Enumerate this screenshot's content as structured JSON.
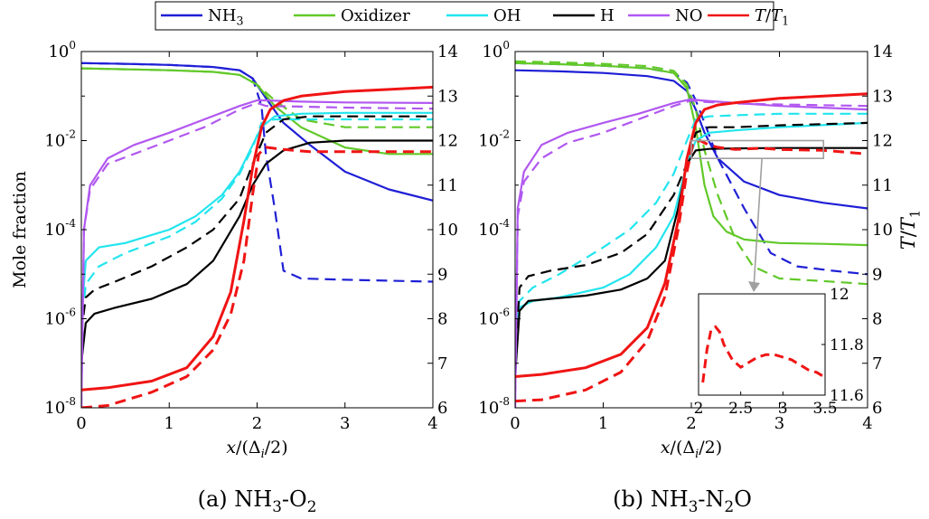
{
  "legend": [
    {
      "label": "NH3",
      "color": "#1f1fd6"
    },
    {
      "label": "Oxidizer",
      "color": "#62c929"
    },
    {
      "label": "OH",
      "color": "#22e5ee"
    },
    {
      "label": "H",
      "color": "#000000"
    },
    {
      "label": "NO",
      "color": "#b158f0"
    },
    {
      "label": "T/T1",
      "color": "#f01414"
    }
  ],
  "chart_data": [
    {
      "type": "line",
      "caption": "(a) NH3-O2",
      "xlabel": "x/(Δi/2)",
      "ylabel_left": "Mole fraction",
      "ylabel_right": "",
      "xlim": [
        0,
        4
      ],
      "ylim_left": [
        1e-08,
        1
      ],
      "yscale_left": "log",
      "ylim_right": [
        6,
        14
      ],
      "xticks": [
        0,
        1,
        2,
        3,
        4
      ],
      "yticks_left": [
        "10^-8",
        "10^-6",
        "10^-4",
        "10^-2",
        "10^0"
      ],
      "yticks_right": [
        6,
        7,
        8,
        9,
        10,
        11,
        12,
        13,
        14
      ],
      "series": [
        {
          "name": "NH3",
          "style": "solid",
          "axis": "left",
          "x": [
            0,
            0.5,
            1,
            1.5,
            1.8,
            1.95,
            2.1,
            2.3,
            2.6,
            3.0,
            3.5,
            4.0
          ],
          "y": [
            0.55,
            0.53,
            0.5,
            0.45,
            0.38,
            0.25,
            0.09,
            0.025,
            0.008,
            0.002,
            0.0008,
            0.00045
          ]
        },
        {
          "name": "NH3",
          "style": "dashed",
          "axis": "left",
          "x": [
            0,
            0.5,
            1,
            1.5,
            1.8,
            1.95,
            2.05,
            2.1,
            2.2,
            2.3,
            2.5,
            3.0,
            4.0
          ],
          "y": [
            0.55,
            0.53,
            0.5,
            0.45,
            0.38,
            0.25,
            0.06,
            0.005,
            0.0003,
            1.2e-05,
            8e-06,
            7.5e-06,
            6.8e-06
          ]
        },
        {
          "name": "Oxidizer",
          "style": "solid",
          "axis": "left",
          "x": [
            0,
            0.5,
            1,
            1.5,
            1.8,
            2.0,
            2.2,
            2.5,
            3.0,
            3.5,
            4.0
          ],
          "y": [
            0.42,
            0.4,
            0.38,
            0.35,
            0.3,
            0.18,
            0.06,
            0.02,
            0.007,
            0.005,
            0.005
          ]
        },
        {
          "name": "Oxidizer",
          "style": "dashed",
          "axis": "left",
          "x": [
            0,
            0.5,
            1,
            1.5,
            1.8,
            2.0,
            2.2,
            2.5,
            3.0,
            4.0
          ],
          "y": [
            0.42,
            0.4,
            0.38,
            0.35,
            0.3,
            0.18,
            0.08,
            0.03,
            0.02,
            0.02
          ]
        },
        {
          "name": "OH",
          "style": "solid",
          "axis": "left",
          "x": [
            0,
            0.05,
            0.2,
            0.5,
            1.0,
            1.3,
            1.6,
            1.8,
            1.95,
            2.05,
            2.2,
            2.5,
            3.0,
            4.0
          ],
          "y": [
            1e-06,
            2e-05,
            4e-05,
            5e-05,
            0.0001,
            0.0002,
            0.0006,
            0.002,
            0.008,
            0.02,
            0.035,
            0.04,
            0.042,
            0.042
          ]
        },
        {
          "name": "OH",
          "style": "dashed",
          "axis": "left",
          "x": [
            0,
            0.05,
            0.2,
            0.5,
            1.0,
            1.3,
            1.6,
            1.8,
            1.95,
            2.05,
            2.2,
            2.5,
            3.0,
            4.0
          ],
          "y": [
            5e-07,
            6e-06,
            1.5e-05,
            3e-05,
            7e-05,
            0.00015,
            0.0005,
            0.0018,
            0.007,
            0.025,
            0.03,
            0.03,
            0.03,
            0.03
          ]
        },
        {
          "name": "H",
          "style": "solid",
          "axis": "left",
          "x": [
            0,
            0.05,
            0.15,
            0.4,
            0.8,
            1.2,
            1.5,
            1.8,
            1.95,
            2.1,
            2.3,
            2.6,
            3.0,
            4.0
          ],
          "y": [
            1e-07,
            8e-07,
            1.3e-06,
            1.8e-06,
            2.8e-06,
            6e-06,
            2e-05,
            0.0002,
            0.001,
            0.003,
            0.006,
            0.009,
            0.01,
            0.01
          ]
        },
        {
          "name": "H",
          "style": "dashed",
          "axis": "left",
          "x": [
            0,
            0.05,
            0.15,
            0.4,
            0.8,
            1.2,
            1.5,
            1.8,
            1.95,
            2.1,
            2.3,
            2.6,
            3.0,
            4.0
          ],
          "y": [
            5e-07,
            3e-06,
            4.5e-06,
            7e-06,
            1.5e-05,
            4e-05,
            0.0001,
            0.0005,
            0.003,
            0.015,
            0.03,
            0.035,
            0.035,
            0.035
          ]
        },
        {
          "name": "NO",
          "style": "solid",
          "axis": "left",
          "x": [
            0,
            0.03,
            0.1,
            0.3,
            0.6,
            1.0,
            1.4,
            1.8,
            2.0,
            2.1,
            2.5,
            3.0,
            4.0
          ],
          "y": [
            1e-08,
            0.0001,
            0.001,
            0.004,
            0.008,
            0.015,
            0.03,
            0.06,
            0.08,
            0.08,
            0.075,
            0.072,
            0.07
          ]
        },
        {
          "name": "NO",
          "style": "dashed",
          "axis": "left",
          "x": [
            0,
            0.03,
            0.1,
            0.3,
            0.6,
            1.0,
            1.4,
            1.8,
            2.0,
            2.1,
            2.5,
            3.0,
            4.0
          ],
          "y": [
            1e-08,
            0.0001,
            0.0008,
            0.003,
            0.005,
            0.01,
            0.02,
            0.05,
            0.07,
            0.06,
            0.058,
            0.055,
            0.052
          ]
        },
        {
          "name": "T/T1",
          "style": "solid",
          "axis": "right",
          "x": [
            0,
            0.3,
            0.8,
            1.2,
            1.5,
            1.7,
            1.85,
            1.95,
            2.05,
            2.15,
            2.3,
            2.5,
            3.0,
            3.5,
            4.0
          ],
          "y": [
            6.4,
            6.45,
            6.6,
            6.9,
            7.6,
            8.6,
            10.2,
            11.4,
            12.3,
            12.7,
            12.9,
            13.0,
            13.1,
            13.15,
            13.2
          ]
        },
        {
          "name": "T/T1",
          "style": "dashed",
          "axis": "right",
          "x": [
            0,
            0.3,
            0.8,
            1.2,
            1.5,
            1.7,
            1.85,
            1.95,
            2.02,
            2.1,
            2.3,
            2.6,
            3.0,
            4.0
          ],
          "y": [
            6.0,
            6.05,
            6.35,
            6.7,
            7.3,
            8.1,
            9.3,
            10.8,
            11.7,
            11.85,
            11.8,
            11.75,
            11.75,
            11.75
          ]
        }
      ]
    },
    {
      "type": "line",
      "caption": "(b) NH3-N2O",
      "xlabel": "x/(Δi/2)",
      "ylabel_left": "",
      "ylabel_right": "T/T1",
      "xlim": [
        0,
        4
      ],
      "ylim_left": [
        1e-08,
        1
      ],
      "yscale_left": "log",
      "ylim_right": [
        6,
        14
      ],
      "xticks": [
        0,
        1,
        2,
        3,
        4
      ],
      "yticks_left": [
        "10^-8",
        "10^-6",
        "10^-4",
        "10^-2",
        "10^0"
      ],
      "yticks_right": [
        6,
        7,
        8,
        9,
        10,
        11,
        12,
        13,
        14
      ],
      "series": [
        {
          "name": "NH3",
          "style": "solid",
          "axis": "left",
          "x": [
            0,
            0.5,
            1,
            1.5,
            1.8,
            1.95,
            2.05,
            2.15,
            2.3,
            2.6,
            3.0,
            3.5,
            4.0
          ],
          "y": [
            0.38,
            0.36,
            0.33,
            0.28,
            0.22,
            0.13,
            0.05,
            0.015,
            0.004,
            0.0012,
            0.0006,
            0.0004,
            0.0003
          ]
        },
        {
          "name": "NH3",
          "style": "dashed",
          "axis": "left",
          "x": [
            0,
            0.5,
            1,
            1.5,
            1.8,
            1.95,
            2.05,
            2.15,
            2.3,
            2.6,
            2.9,
            3.2,
            3.6,
            4.0
          ],
          "y": [
            0.55,
            0.52,
            0.48,
            0.42,
            0.33,
            0.2,
            0.08,
            0.025,
            0.004,
            0.0003,
            3e-05,
            1.5e-05,
            1.2e-05,
            1e-05
          ]
        },
        {
          "name": "Oxidizer",
          "style": "solid",
          "axis": "left",
          "x": [
            0,
            0.5,
            1,
            1.5,
            1.8,
            1.95,
            2.05,
            2.15,
            2.25,
            2.4,
            2.6,
            3.0,
            3.5,
            4.0
          ],
          "y": [
            0.55,
            0.52,
            0.48,
            0.42,
            0.33,
            0.15,
            0.02,
            0.001,
            0.0002,
            9e-05,
            6e-05,
            5e-05,
            4.8e-05,
            4.5e-05
          ]
        },
        {
          "name": "Oxidizer",
          "style": "dashed",
          "axis": "left",
          "x": [
            0,
            0.5,
            1,
            1.5,
            1.8,
            1.95,
            2.05,
            2.15,
            2.3,
            2.5,
            2.7,
            3.0,
            3.5,
            4.0
          ],
          "y": [
            0.6,
            0.57,
            0.53,
            0.47,
            0.37,
            0.18,
            0.05,
            0.006,
            0.0006,
            6e-05,
            1.5e-05,
            8e-06,
            7e-06,
            6e-06
          ]
        },
        {
          "name": "OH",
          "style": "solid",
          "axis": "left",
          "x": [
            0,
            0.05,
            0.2,
            0.5,
            1.0,
            1.3,
            1.6,
            1.8,
            1.95,
            2.05,
            2.2,
            2.5,
            3.0,
            4.0
          ],
          "y": [
            5e-07,
            1.8e-06,
            2.5e-06,
            3e-06,
            5e-06,
            1e-05,
            4e-05,
            0.0002,
            0.003,
            0.01,
            0.015,
            0.017,
            0.02,
            0.025
          ]
        },
        {
          "name": "OH",
          "style": "dashed",
          "axis": "left",
          "x": [
            0,
            0.05,
            0.2,
            0.5,
            1.0,
            1.3,
            1.6,
            1.8,
            1.95,
            2.05,
            2.2,
            2.5,
            3.0,
            4.0
          ],
          "y": [
            8e-07,
            2.5e-06,
            5e-06,
            1e-05,
            4e-05,
            0.0001,
            0.0004,
            0.0018,
            0.01,
            0.03,
            0.035,
            0.037,
            0.04,
            0.04
          ]
        },
        {
          "name": "H",
          "style": "solid",
          "axis": "left",
          "x": [
            0,
            0.05,
            0.15,
            0.4,
            0.8,
            1.2,
            1.5,
            1.7,
            1.85,
            1.95,
            2.05,
            2.2,
            2.5,
            3.0,
            4.0
          ],
          "y": [
            5e-08,
            1.5e-06,
            2.5e-06,
            2.8e-06,
            3.3e-06,
            4.5e-06,
            8e-06,
            2e-05,
            0.0003,
            0.003,
            0.006,
            0.0065,
            0.0067,
            0.0068,
            0.0068
          ]
        },
        {
          "name": "H",
          "style": "dashed",
          "axis": "left",
          "x": [
            0,
            0.05,
            0.15,
            0.4,
            0.8,
            1.2,
            1.5,
            1.8,
            1.95,
            2.05,
            2.2,
            2.5,
            3.0,
            4.0
          ],
          "y": [
            1e-07,
            5e-06,
            9e-06,
            1.2e-05,
            1.6e-05,
            3e-05,
            8e-05,
            0.0006,
            0.003,
            0.015,
            0.02,
            0.02,
            0.022,
            0.025
          ]
        },
        {
          "name": "NO",
          "style": "solid",
          "axis": "left",
          "x": [
            0,
            0.03,
            0.1,
            0.3,
            0.6,
            1.0,
            1.4,
            1.8,
            2.0,
            2.1,
            2.5,
            3.0,
            4.0
          ],
          "y": [
            1e-08,
            0.0003,
            0.002,
            0.008,
            0.015,
            0.025,
            0.04,
            0.07,
            0.085,
            0.08,
            0.07,
            0.06,
            0.05
          ]
        },
        {
          "name": "NO",
          "style": "dashed",
          "axis": "left",
          "x": [
            0,
            0.03,
            0.1,
            0.3,
            0.6,
            1.0,
            1.4,
            1.8,
            2.0,
            2.1,
            2.5,
            3.0,
            4.0
          ],
          "y": [
            1e-08,
            0.0002,
            0.0012,
            0.004,
            0.009,
            0.015,
            0.03,
            0.06,
            0.08,
            0.075,
            0.068,
            0.065,
            0.06
          ]
        },
        {
          "name": "T/T1",
          "style": "solid",
          "axis": "right",
          "x": [
            0,
            0.3,
            0.8,
            1.2,
            1.5,
            1.7,
            1.85,
            1.95,
            2.05,
            2.15,
            2.3,
            2.5,
            3.0,
            3.5,
            4.0
          ],
          "y": [
            6.7,
            6.75,
            6.9,
            7.2,
            7.8,
            8.8,
            10.2,
            11.6,
            12.4,
            12.7,
            12.8,
            12.85,
            12.95,
            13.0,
            13.05
          ]
        },
        {
          "name": "T/T1",
          "style": "dashed",
          "axis": "right",
          "x": [
            0,
            0.3,
            0.8,
            1.2,
            1.5,
            1.7,
            1.85,
            1.95,
            2.02,
            2.1,
            2.2,
            2.3,
            2.5,
            2.8,
            3.0,
            3.5,
            4.0
          ],
          "y": [
            6.15,
            6.18,
            6.4,
            6.8,
            7.5,
            8.5,
            10.0,
            11.3,
            11.95,
            12.0,
            11.9,
            11.85,
            11.8,
            11.83,
            11.8,
            11.78,
            11.7
          ]
        }
      ],
      "inset": {
        "xlim": [
          2,
          3.5
        ],
        "ylim": [
          11.6,
          12
        ],
        "xticks": [
          2,
          2.5,
          3,
          3.5
        ],
        "yticks": [
          11.6,
          11.8,
          12
        ],
        "series": [
          {
            "name": "T/T1",
            "style": "dashed",
            "x": [
              2.05,
              2.1,
              2.15,
              2.2,
              2.25,
              2.3,
              2.4,
              2.5,
              2.6,
              2.7,
              2.8,
              2.9,
              3.0,
              3.1,
              3.2,
              3.3,
              3.4,
              3.5
            ],
            "y": [
              11.65,
              11.78,
              11.86,
              11.87,
              11.85,
              11.8,
              11.74,
              11.71,
              11.73,
              11.75,
              11.76,
              11.76,
              11.75,
              11.74,
              11.72,
              11.7,
              11.69,
              11.67
            ]
          }
        ]
      }
    }
  ]
}
